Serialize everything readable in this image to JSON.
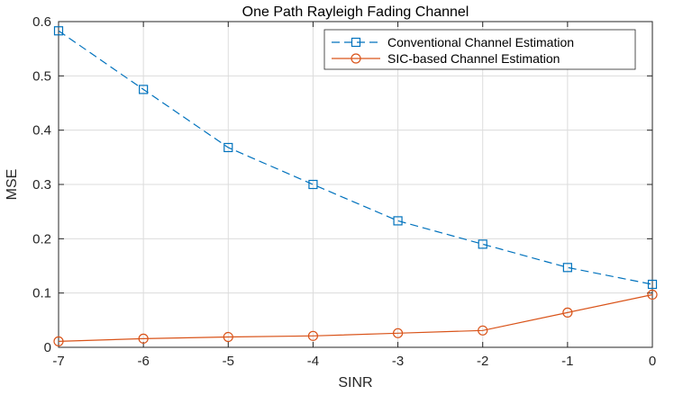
{
  "chart_data": {
    "type": "line",
    "title": "One Path Rayleigh Fading Channel",
    "xlabel": "SINR",
    "ylabel": "MSE",
    "xlim": [
      -7,
      0
    ],
    "ylim": [
      0,
      0.6
    ],
    "xticks": [
      "-7",
      "-6",
      "-5",
      "-4",
      "-3",
      "-2",
      "-1",
      "0"
    ],
    "yticks": [
      "0",
      "0.1",
      "0.2",
      "0.3",
      "0.4",
      "0.5",
      "0.6"
    ],
    "grid": true,
    "legend_position": "top-right",
    "x": [
      -7,
      -6,
      -5,
      -4,
      -3,
      -2,
      -1,
      0
    ],
    "series": [
      {
        "name": "Conventional Channel Estimation",
        "values": [
          0.583,
          0.475,
          0.368,
          0.3,
          0.233,
          0.19,
          0.147,
          0.116
        ],
        "color": "#0072BD",
        "line_style": "dashed",
        "marker": "square"
      },
      {
        "name": "SIC-based Channel Estimation",
        "values": [
          0.011,
          0.016,
          0.019,
          0.021,
          0.026,
          0.031,
          0.064,
          0.097
        ],
        "color": "#D95319",
        "line_style": "solid",
        "marker": "circle"
      }
    ]
  }
}
